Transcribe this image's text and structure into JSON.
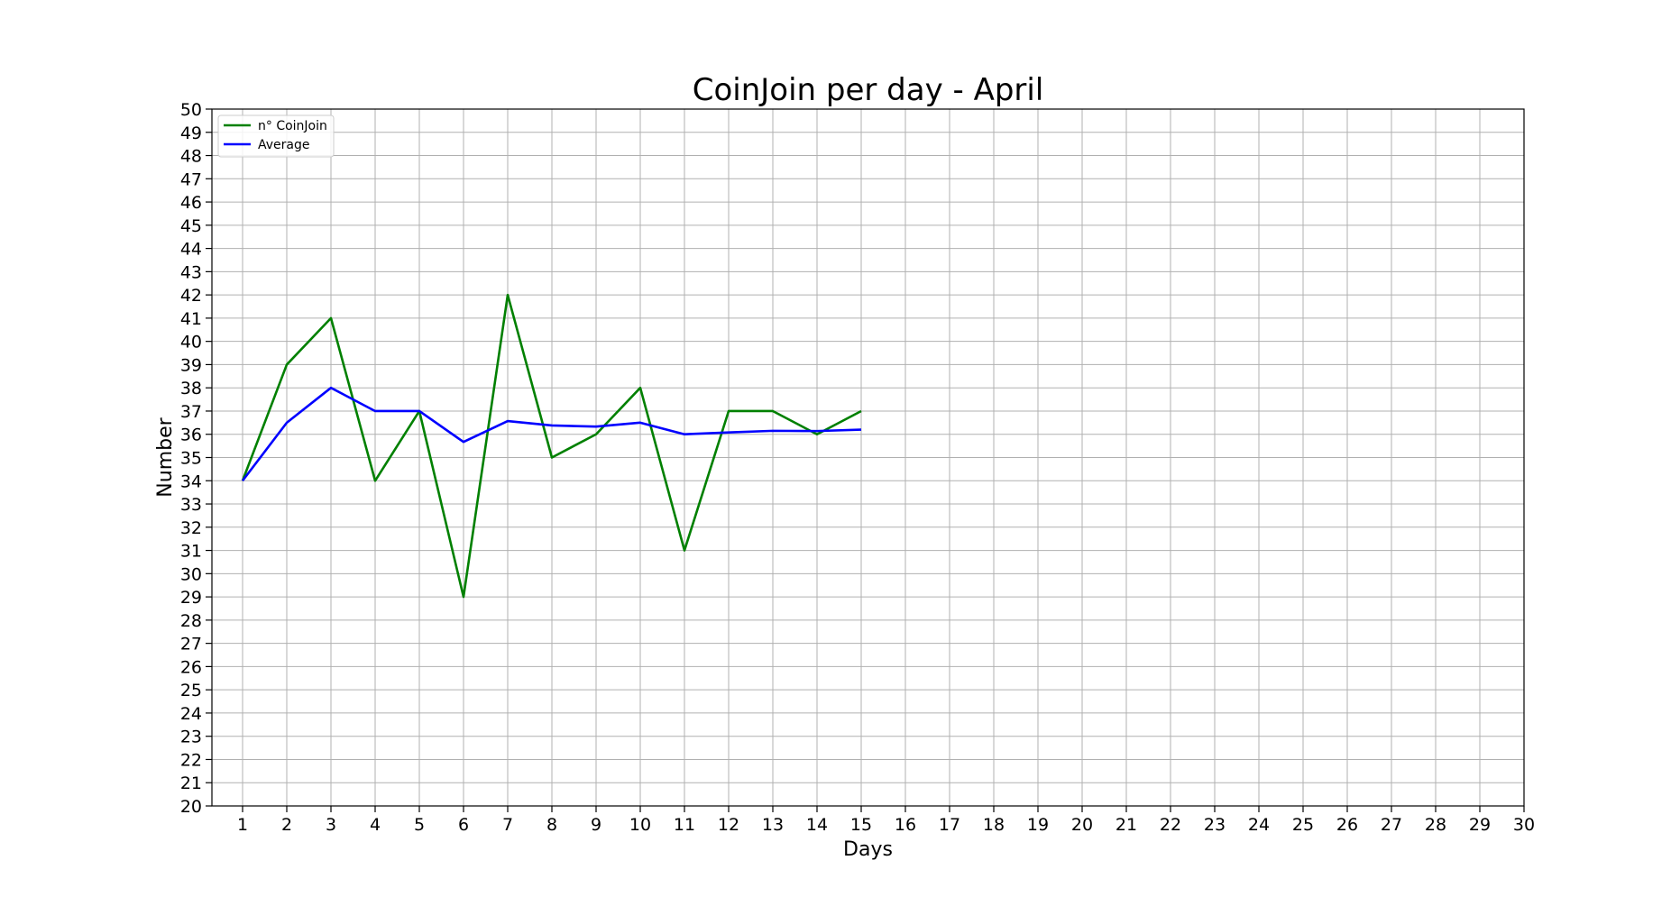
{
  "chart_data": {
    "type": "line",
    "title": "CoinJoin per day - April",
    "xlabel": "Days",
    "ylabel": "Number",
    "x_ticks": [
      "1",
      "2",
      "3",
      "4",
      "5",
      "6",
      "7",
      "8",
      "9",
      "10",
      "11",
      "12",
      "13",
      "14",
      "15",
      "16",
      "17",
      "18",
      "19",
      "20",
      "21",
      "22",
      "23",
      "24",
      "25",
      "26",
      "27",
      "28",
      "29",
      "30"
    ],
    "ylim": [
      20,
      50
    ],
    "y_ticks": [
      20,
      21,
      22,
      23,
      24,
      25,
      26,
      27,
      28,
      29,
      30,
      31,
      32,
      33,
      34,
      35,
      36,
      37,
      38,
      39,
      40,
      41,
      42,
      43,
      44,
      45,
      46,
      47,
      48,
      49,
      50
    ],
    "grid": true,
    "legend_position": "top-left",
    "series": [
      {
        "name": "n° CoinJoin",
        "color": "#008000",
        "x": [
          1,
          2,
          3,
          4,
          5,
          6,
          7,
          8,
          9,
          10,
          11,
          12,
          13,
          14,
          15
        ],
        "values": [
          34,
          39,
          41,
          34,
          37,
          29,
          42,
          35,
          36,
          38,
          31,
          37,
          37,
          36,
          37
        ]
      },
      {
        "name": "Average",
        "color": "#0000ff",
        "x": [
          1,
          2,
          3,
          4,
          5,
          6,
          7,
          8,
          9,
          10,
          11,
          12,
          13,
          14,
          15
        ],
        "values": [
          34,
          36.5,
          38,
          37,
          37,
          35.67,
          36.57,
          36.38,
          36.33,
          36.5,
          36,
          36.08,
          36.15,
          36.14,
          36.2
        ]
      }
    ]
  }
}
